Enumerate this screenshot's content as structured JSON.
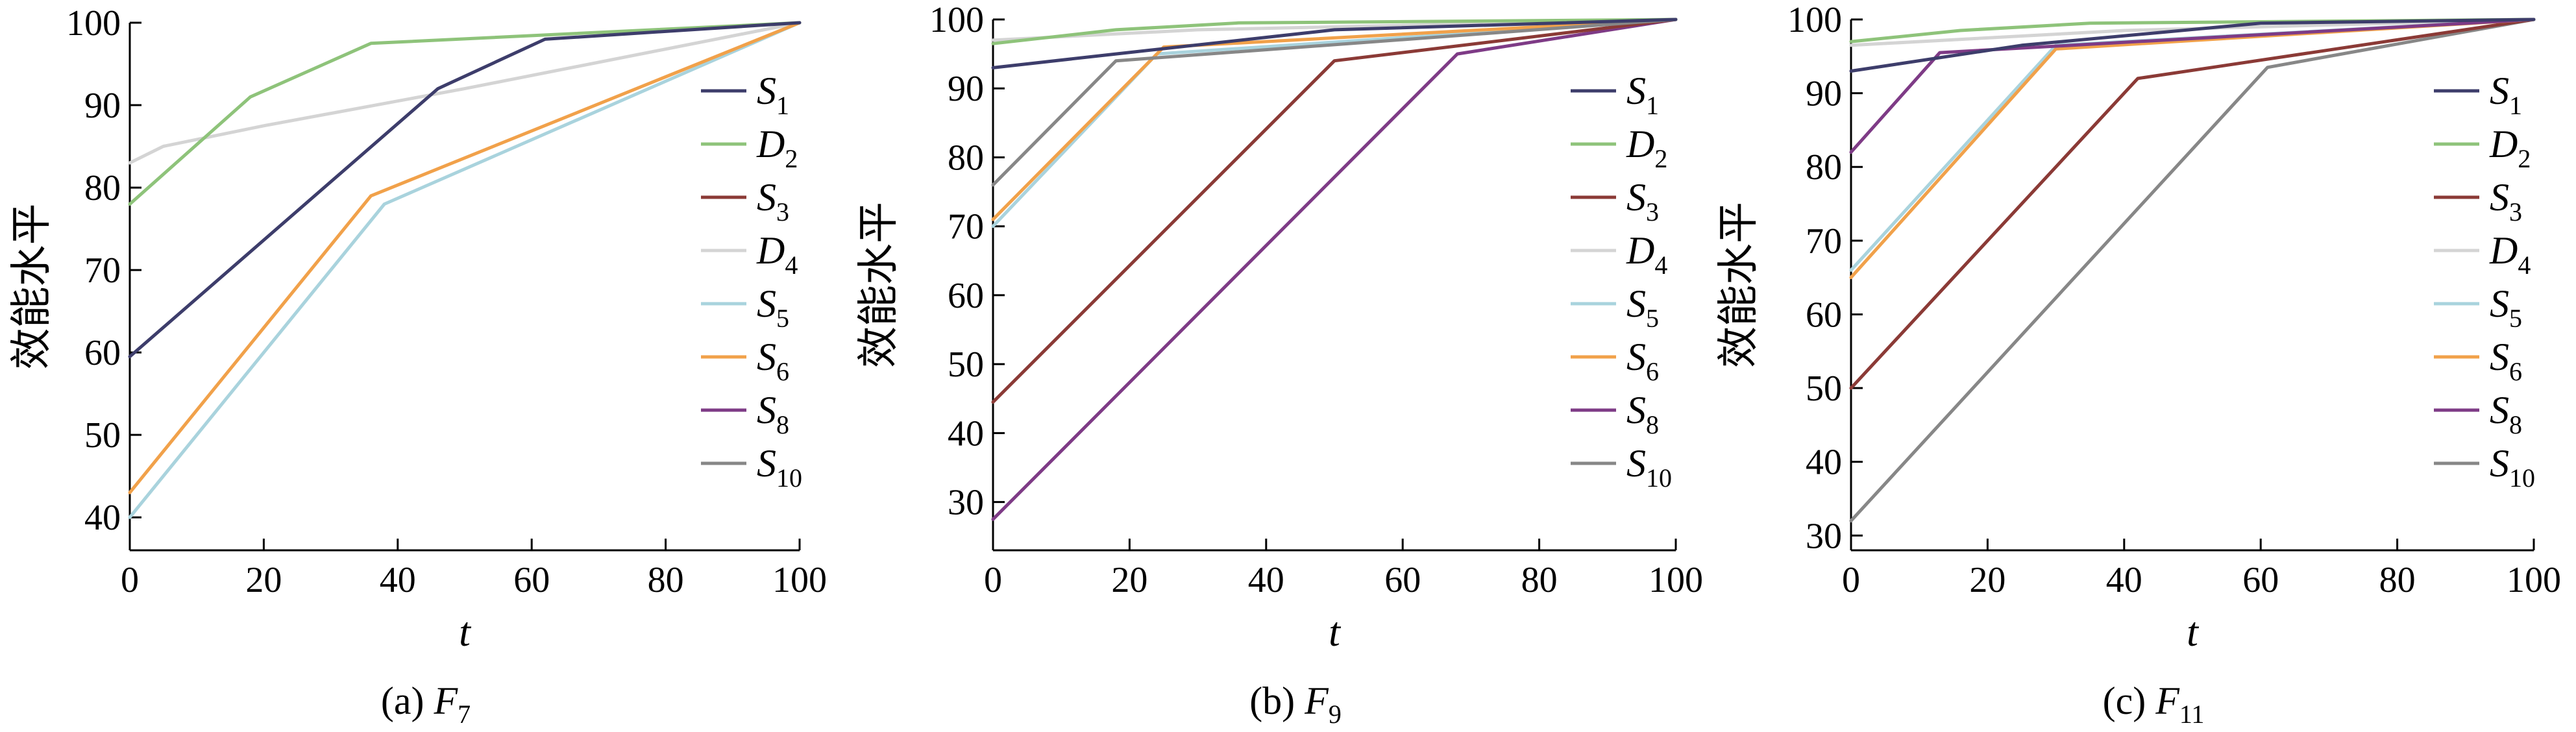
{
  "figure": {
    "ylabel": "效能水平",
    "xlabel": "t",
    "legend_position": "right",
    "grid": false
  },
  "series_styles": {
    "S1": {
      "main": "S",
      "sub": "1",
      "color": "#3d3d6b"
    },
    "D2": {
      "main": "D",
      "sub": "2",
      "color": "#8ec37a"
    },
    "S3": {
      "main": "S",
      "sub": "3",
      "color": "#8b3a36"
    },
    "D4": {
      "main": "D",
      "sub": "4",
      "color": "#d4d4d4"
    },
    "S5": {
      "main": "S",
      "sub": "5",
      "color": "#a9d3dd"
    },
    "S6": {
      "main": "S",
      "sub": "6",
      "color": "#f1a14a"
    },
    "S8": {
      "main": "S",
      "sub": "8",
      "color": "#7e3b86"
    },
    "S10": {
      "main": "S",
      "sub": "10",
      "color": "#878787"
    }
  },
  "chart_data": [
    {
      "type": "line",
      "caption": {
        "prefix": "(a) ",
        "var": "F",
        "sub": "7"
      },
      "xlabel": "t",
      "ylabel": "效能水平",
      "xlim": [
        0,
        100
      ],
      "ylim": [
        36,
        100
      ],
      "xticks": [
        0,
        20,
        40,
        60,
        80,
        100
      ],
      "yticks": [
        40,
        50,
        60,
        70,
        80,
        90,
        100
      ],
      "legend": [
        "S1",
        "D2",
        "S3",
        "D4",
        "S5",
        "S6",
        "S8",
        "S10"
      ],
      "series": [
        {
          "key": "D4",
          "points": [
            [
              0,
              83
            ],
            [
              5,
              85
            ],
            [
              20,
              87.5
            ],
            [
              50,
              92
            ],
            [
              100,
              100
            ]
          ]
        },
        {
          "key": "S5",
          "points": [
            [
              0,
              40
            ],
            [
              38,
              78
            ],
            [
              100,
              100
            ]
          ]
        },
        {
          "key": "S6",
          "points": [
            [
              0,
              43
            ],
            [
              36,
              79
            ],
            [
              100,
              100
            ]
          ]
        },
        {
          "key": "D2",
          "points": [
            [
              0,
              78
            ],
            [
              18,
              91
            ],
            [
              36,
              97.5
            ],
            [
              100,
              100
            ]
          ]
        },
        {
          "key": "S1",
          "points": [
            [
              0,
              59.5
            ],
            [
              46,
              92
            ],
            [
              62,
              98
            ],
            [
              100,
              100
            ]
          ]
        }
      ]
    },
    {
      "type": "line",
      "caption": {
        "prefix": "(b) ",
        "var": "F",
        "sub": "9"
      },
      "xlabel": "t",
      "ylabel": "效能水平",
      "xlim": [
        0,
        100
      ],
      "ylim": [
        23,
        100
      ],
      "xticks": [
        0,
        20,
        40,
        60,
        80,
        100
      ],
      "yticks": [
        30,
        40,
        50,
        60,
        70,
        80,
        90,
        100
      ],
      "legend": [
        "S1",
        "D2",
        "S3",
        "D4",
        "S5",
        "S6",
        "S8",
        "S10"
      ],
      "series": [
        {
          "key": "D4",
          "points": [
            [
              0,
              97
            ],
            [
              30,
              98.5
            ],
            [
              100,
              100
            ]
          ]
        },
        {
          "key": "S8",
          "points": [
            [
              0,
              27.5
            ],
            [
              68,
              95
            ],
            [
              100,
              100
            ]
          ]
        },
        {
          "key": "S3",
          "points": [
            [
              0,
              44.5
            ],
            [
              50,
              94
            ],
            [
              100,
              100
            ]
          ]
        },
        {
          "key": "S5",
          "points": [
            [
              0,
              70
            ],
            [
              24,
              95
            ],
            [
              100,
              100
            ]
          ]
        },
        {
          "key": "S6",
          "points": [
            [
              0,
              71
            ],
            [
              25,
              96
            ],
            [
              100,
              100
            ]
          ]
        },
        {
          "key": "S10",
          "points": [
            [
              0,
              76
            ],
            [
              18,
              94
            ],
            [
              100,
              100
            ]
          ]
        },
        {
          "key": "D2",
          "points": [
            [
              0,
              96.5
            ],
            [
              18,
              98.5
            ],
            [
              36,
              99.5
            ],
            [
              100,
              100
            ]
          ]
        },
        {
          "key": "S1",
          "points": [
            [
              0,
              93
            ],
            [
              18,
              95
            ],
            [
              50,
              98.5
            ],
            [
              100,
              100
            ]
          ]
        }
      ]
    },
    {
      "type": "line",
      "caption": {
        "prefix": "(c) ",
        "var": "F",
        "sub": "11"
      },
      "xlabel": "t",
      "ylabel": "效能水平",
      "xlim": [
        0,
        100
      ],
      "ylim": [
        28,
        100
      ],
      "xticks": [
        0,
        20,
        40,
        60,
        80,
        100
      ],
      "yticks": [
        30,
        40,
        50,
        60,
        70,
        80,
        90,
        100
      ],
      "legend": [
        "S1",
        "D2",
        "S3",
        "D4",
        "S5",
        "S6",
        "S8",
        "S10"
      ],
      "series": [
        {
          "key": "D4",
          "points": [
            [
              0,
              96.5
            ],
            [
              40,
              98.5
            ],
            [
              100,
              100
            ]
          ]
        },
        {
          "key": "S10",
          "points": [
            [
              0,
              32
            ],
            [
              61,
              93.5
            ],
            [
              100,
              100
            ]
          ]
        },
        {
          "key": "S3",
          "points": [
            [
              0,
              50
            ],
            [
              42,
              92
            ],
            [
              100,
              100
            ]
          ]
        },
        {
          "key": "S5",
          "points": [
            [
              0,
              66
            ],
            [
              30,
              96.5
            ],
            [
              100,
              100
            ]
          ]
        },
        {
          "key": "S6",
          "points": [
            [
              0,
              65
            ],
            [
              30,
              96
            ],
            [
              100,
              100
            ]
          ]
        },
        {
          "key": "S8",
          "points": [
            [
              0,
              82
            ],
            [
              13,
              95.5
            ],
            [
              100,
              100
            ]
          ]
        },
        {
          "key": "D2",
          "points": [
            [
              0,
              97
            ],
            [
              16,
              98.5
            ],
            [
              35,
              99.5
            ],
            [
              100,
              100
            ]
          ]
        },
        {
          "key": "S1",
          "points": [
            [
              0,
              93
            ],
            [
              25,
              96.5
            ],
            [
              60,
              99.5
            ],
            [
              100,
              100
            ]
          ]
        }
      ]
    }
  ]
}
